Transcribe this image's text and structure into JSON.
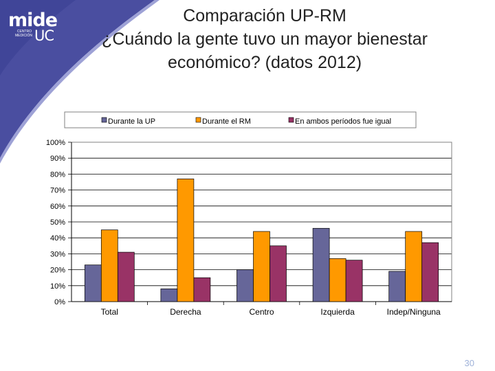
{
  "slide": {
    "title_lines": [
      "Comparación UP-RM",
      "¿Cuándo la gente tuvo un mayor bienestar",
      "económico? (datos 2012)"
    ],
    "logo": {
      "main": "mide",
      "sub": "UC",
      "small": "CENTRO MEDICIÓN"
    },
    "page_number": "30",
    "colors": {
      "banner": "#4a4ea0",
      "banner_light": "#7e83c4"
    }
  },
  "chart_data": {
    "type": "bar",
    "categories": [
      "Total",
      "Derecha",
      "Centro",
      "Izquierda",
      "Indep/Ninguna"
    ],
    "series": [
      {
        "name": "Durante la UP",
        "color": "#666699",
        "values": [
          23,
          8,
          20,
          46,
          19
        ]
      },
      {
        "name": "Durante el RM",
        "color": "#ff9900",
        "values": [
          45,
          77,
          44,
          27,
          44
        ]
      },
      {
        "name": "En ambos períodos fue igual",
        "color": "#993366",
        "values": [
          31,
          15,
          35,
          26,
          37
        ]
      }
    ],
    "yticks": [
      "0%",
      "10%",
      "20%",
      "30%",
      "40%",
      "50%",
      "60%",
      "70%",
      "80%",
      "90%",
      "100%"
    ],
    "ylim": [
      0,
      100
    ],
    "grid": true,
    "legend_position": "top"
  }
}
